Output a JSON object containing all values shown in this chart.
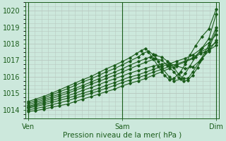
{
  "title": "",
  "xlabel": "Pression niveau de la mer( hPa )",
  "xtick_labels": [
    "Ven",
    "Sam",
    "Dim"
  ],
  "xtick_positions": [
    0,
    1,
    2
  ],
  "xlim": [
    -0.03,
    2.03
  ],
  "ylim": [
    1013.5,
    1020.5
  ],
  "yticks": [
    1014,
    1015,
    1016,
    1017,
    1018,
    1019,
    1020
  ],
  "bg_color": "#cce8dc",
  "grid_color": "#b8c8c0",
  "line_color": "#1a5c1a",
  "figsize": [
    3.2,
    2.0
  ],
  "dpi": 100,
  "lines": [
    {
      "x": [
        0.0,
        0.08,
        0.17,
        0.25,
        0.33,
        0.42,
        0.5,
        0.58,
        0.67,
        0.75,
        0.83,
        0.92,
        1.0,
        1.08,
        1.17,
        1.25,
        1.33,
        1.42,
        1.5,
        1.58,
        1.67,
        1.75,
        1.83,
        1.92,
        2.0
      ],
      "y": [
        1013.9,
        1013.95,
        1014.05,
        1014.15,
        1014.25,
        1014.35,
        1014.5,
        1014.65,
        1014.8,
        1014.95,
        1015.1,
        1015.25,
        1015.45,
        1015.6,
        1015.75,
        1015.9,
        1016.1,
        1016.3,
        1016.5,
        1016.7,
        1016.9,
        1017.1,
        1017.4,
        1017.6,
        1017.9
      ]
    },
    {
      "x": [
        0.0,
        0.08,
        0.17,
        0.25,
        0.33,
        0.42,
        0.5,
        0.58,
        0.67,
        0.75,
        0.83,
        0.92,
        1.0,
        1.08,
        1.17,
        1.25,
        1.33,
        1.42,
        1.5,
        1.58,
        1.67,
        1.75,
        1.83,
        1.92,
        2.0
      ],
      "y": [
        1014.0,
        1014.08,
        1014.18,
        1014.3,
        1014.42,
        1014.55,
        1014.7,
        1014.85,
        1015.0,
        1015.15,
        1015.3,
        1015.48,
        1015.65,
        1015.8,
        1015.95,
        1016.1,
        1016.28,
        1016.45,
        1016.62,
        1016.78,
        1016.95,
        1017.15,
        1017.5,
        1017.75,
        1018.1
      ]
    },
    {
      "x": [
        0.0,
        0.08,
        0.17,
        0.25,
        0.33,
        0.42,
        0.5,
        0.58,
        0.67,
        0.75,
        0.83,
        0.92,
        1.0,
        1.08,
        1.17,
        1.25,
        1.33,
        1.42,
        1.5,
        1.58,
        1.67,
        1.75,
        1.83,
        1.92,
        2.0
      ],
      "y": [
        1014.1,
        1014.2,
        1014.32,
        1014.44,
        1014.57,
        1014.7,
        1014.85,
        1015.0,
        1015.15,
        1015.3,
        1015.48,
        1015.65,
        1015.82,
        1015.98,
        1016.12,
        1016.28,
        1016.45,
        1016.62,
        1016.78,
        1016.95,
        1017.12,
        1017.32,
        1017.65,
        1018.05,
        1018.55
      ]
    },
    {
      "x": [
        0.0,
        0.08,
        0.17,
        0.25,
        0.33,
        0.42,
        0.5,
        0.58,
        0.67,
        0.75,
        0.83,
        0.92,
        1.0,
        1.08,
        1.17,
        1.25,
        1.33,
        1.42,
        1.5,
        1.58,
        1.67,
        1.75,
        1.83,
        1.92,
        2.0
      ],
      "y": [
        1014.15,
        1014.28,
        1014.42,
        1014.56,
        1014.7,
        1014.85,
        1015.0,
        1015.18,
        1015.35,
        1015.52,
        1015.7,
        1015.88,
        1016.05,
        1016.22,
        1016.38,
        1016.52,
        1016.65,
        1016.78,
        1016.82,
        1016.65,
        1016.5,
        1016.6,
        1017.0,
        1017.55,
        1018.2
      ]
    },
    {
      "x": [
        0.0,
        0.08,
        0.17,
        0.25,
        0.33,
        0.42,
        0.5,
        0.58,
        0.67,
        0.75,
        0.83,
        0.92,
        1.0,
        1.08,
        1.17,
        1.25,
        1.33,
        1.35,
        1.42,
        1.48,
        1.55,
        1.6,
        1.65,
        1.7,
        1.75,
        1.8,
        1.85,
        1.92,
        2.0
      ],
      "y": [
        1014.2,
        1014.35,
        1014.52,
        1014.68,
        1014.84,
        1015.0,
        1015.18,
        1015.35,
        1015.55,
        1015.72,
        1015.9,
        1016.1,
        1016.28,
        1016.48,
        1016.7,
        1016.88,
        1017.05,
        1017.1,
        1017.0,
        1016.7,
        1016.3,
        1015.95,
        1015.75,
        1015.8,
        1016.1,
        1016.55,
        1017.1,
        1017.7,
        1018.8
      ]
    },
    {
      "x": [
        0.0,
        0.08,
        0.17,
        0.25,
        0.33,
        0.42,
        0.5,
        0.58,
        0.67,
        0.75,
        0.83,
        0.92,
        1.0,
        1.08,
        1.17,
        1.25,
        1.3,
        1.35,
        1.42,
        1.48,
        1.55,
        1.6,
        1.65,
        1.7,
        1.75,
        1.82,
        1.88,
        1.92,
        2.0
      ],
      "y": [
        1014.3,
        1014.45,
        1014.62,
        1014.78,
        1014.95,
        1015.12,
        1015.3,
        1015.48,
        1015.68,
        1015.88,
        1016.08,
        1016.28,
        1016.48,
        1016.7,
        1016.92,
        1017.1,
        1017.2,
        1017.3,
        1017.2,
        1016.95,
        1016.55,
        1016.15,
        1015.9,
        1015.9,
        1016.3,
        1016.9,
        1017.5,
        1017.9,
        1019.0
      ]
    },
    {
      "x": [
        0.0,
        0.08,
        0.17,
        0.25,
        0.33,
        0.42,
        0.5,
        0.58,
        0.67,
        0.75,
        0.83,
        0.92,
        1.0,
        1.08,
        1.17,
        1.22,
        1.28,
        1.33,
        1.38,
        1.42,
        1.5,
        1.55,
        1.62,
        1.67,
        1.72,
        1.78,
        1.85,
        1.92,
        2.0
      ],
      "y": [
        1014.4,
        1014.55,
        1014.72,
        1014.9,
        1015.08,
        1015.28,
        1015.48,
        1015.68,
        1015.88,
        1016.08,
        1016.3,
        1016.5,
        1016.72,
        1016.95,
        1017.2,
        1017.42,
        1017.55,
        1017.35,
        1016.95,
        1016.55,
        1016.0,
        1015.75,
        1015.85,
        1016.2,
        1016.65,
        1017.2,
        1017.75,
        1018.3,
        1019.8
      ]
    },
    {
      "x": [
        0.0,
        0.08,
        0.17,
        0.25,
        0.33,
        0.42,
        0.5,
        0.58,
        0.67,
        0.75,
        0.83,
        0.92,
        1.0,
        1.08,
        1.15,
        1.2,
        1.25,
        1.28,
        1.33,
        1.38,
        1.45,
        1.5,
        1.55,
        1.62,
        1.67,
        1.72,
        1.78,
        1.85,
        1.92,
        2.0
      ],
      "y": [
        1014.5,
        1014.65,
        1014.82,
        1015.0,
        1015.2,
        1015.42,
        1015.62,
        1015.82,
        1016.02,
        1016.25,
        1016.48,
        1016.7,
        1016.92,
        1017.15,
        1017.4,
        1017.58,
        1017.72,
        1017.5,
        1017.1,
        1016.65,
        1016.1,
        1015.82,
        1015.9,
        1016.3,
        1016.75,
        1017.3,
        1017.88,
        1018.45,
        1018.9,
        1020.1
      ]
    }
  ]
}
